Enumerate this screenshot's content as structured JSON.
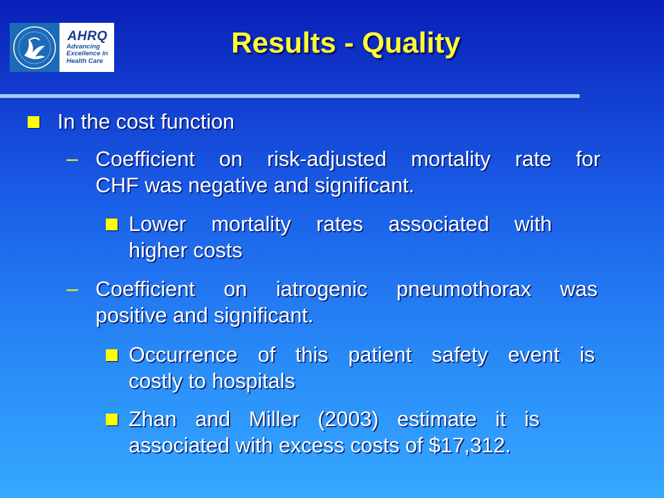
{
  "logo": {
    "ahrq_word": "AHRQ",
    "tagline_1": "Advancing",
    "tagline_2": "Excellence in",
    "tagline_3": "Health Care"
  },
  "title": "Results - Quality",
  "bullets": {
    "level1": "In the cost function",
    "sub1": {
      "line1": "Coefficient on risk-adjusted mortality rate for",
      "line2": "CHF was negative and significant.",
      "b1_line1": "Lower mortality rates associated with",
      "b1_line2": "higher costs"
    },
    "sub2": {
      "line1": "Coefficient on iatrogenic pneumothorax was",
      "line2": "positive and significant.",
      "b1_line1": "Occurrence of this patient safety event is",
      "b1_line2": "costly to hospitals",
      "b2_line1": "Zhan and Miller (2003) estimate it is",
      "b2_line2": "associated with excess costs of $17,312."
    }
  },
  "colors": {
    "title": "#ffff33",
    "bullet": "#ffff00",
    "text": "#ffffff"
  }
}
